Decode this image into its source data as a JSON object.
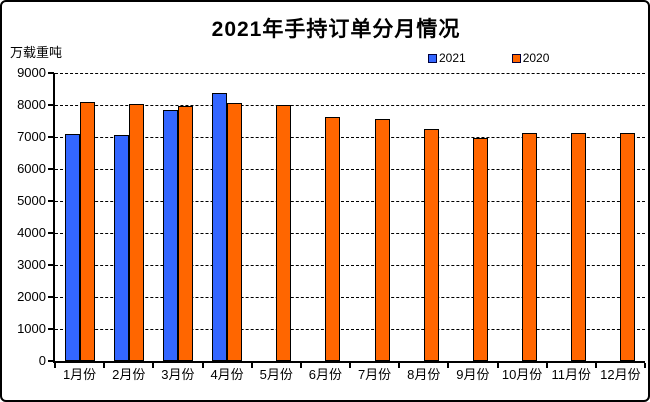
{
  "title": "2021年手持订单分月情况",
  "y_axis_unit": "万载重吨",
  "legend": {
    "items": [
      {
        "label": "2021",
        "color": "#3366FF"
      },
      {
        "label": "2020",
        "color": "#FF6600"
      }
    ]
  },
  "chart_data": {
    "type": "bar",
    "title": "2021年手持订单分月情况",
    "ylabel": "万载重吨",
    "ylim": [
      0,
      9000
    ],
    "ytick_step": 1000,
    "grid": "horizontal-dashed",
    "legend_position": "top-right-above-plot",
    "bar_outline_color": "#000000",
    "categories": [
      "1月份",
      "2月份",
      "3月份",
      "4月份",
      "5月份",
      "6月份",
      "7月份",
      "8月份",
      "9月份",
      "10月份",
      "11月份",
      "12月份"
    ],
    "series": [
      {
        "name": "2021",
        "color": "#3366FF",
        "values": [
          7090,
          7060,
          7830,
          8390,
          null,
          null,
          null,
          null,
          null,
          null,
          null,
          null
        ]
      },
      {
        "name": "2020",
        "color": "#FF6600",
        "values": [
          8090,
          8020,
          7960,
          8060,
          7990,
          7630,
          7560,
          7240,
          6970,
          7120,
          7120,
          7110
        ]
      }
    ]
  }
}
